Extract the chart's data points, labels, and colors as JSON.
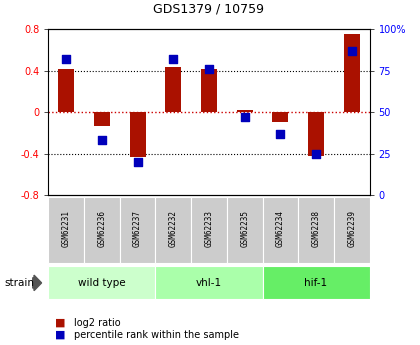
{
  "title": "GDS1379 / 10759",
  "samples": [
    "GSM62231",
    "GSM62236",
    "GSM62237",
    "GSM62232",
    "GSM62233",
    "GSM62235",
    "GSM62234",
    "GSM62238",
    "GSM62239"
  ],
  "log2_ratio": [
    0.42,
    -0.13,
    -0.43,
    0.44,
    0.42,
    0.02,
    -0.1,
    -0.42,
    0.75
  ],
  "percentile": [
    82,
    33,
    20,
    82,
    76,
    47,
    37,
    25,
    87
  ],
  "groups": [
    {
      "label": "wild type",
      "start": 0,
      "end": 3,
      "color": "#ccffcc"
    },
    {
      "label": "vhl-1",
      "start": 3,
      "end": 6,
      "color": "#aaffaa"
    },
    {
      "label": "hif-1",
      "start": 6,
      "end": 9,
      "color": "#66ee66"
    }
  ],
  "ylim": [
    -0.8,
    0.8
  ],
  "yticks_left": [
    -0.8,
    -0.4,
    0.0,
    0.4,
    0.8
  ],
  "yticks_right": [
    0,
    25,
    50,
    75,
    100
  ],
  "bar_color": "#aa1100",
  "dot_color": "#0000bb",
  "hline_color": "#cc0000",
  "grid_color": "#000000",
  "bg_color": "#ffffff",
  "legend_red_label": "log2 ratio",
  "legend_blue_label": "percentile rank within the sample",
  "strain_label": "strain"
}
